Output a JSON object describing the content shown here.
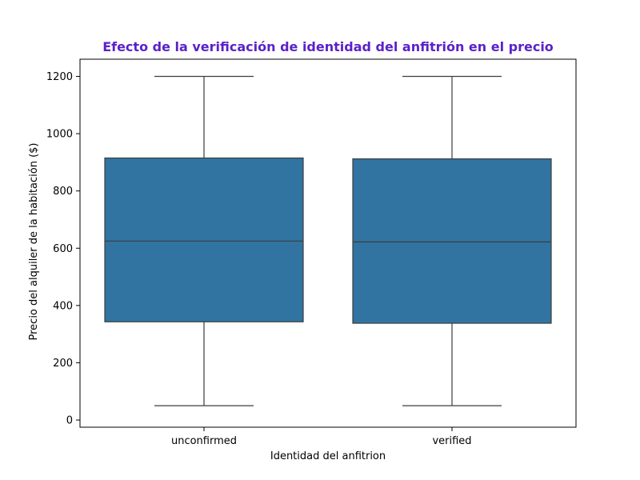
{
  "chart_data": {
    "type": "boxplot",
    "title": "Efecto de la verificación de identidad del anfitrión en el precio",
    "xlabel": "Identidad del anfitrion",
    "ylabel": "Precio del alquiler de la habitación ($)",
    "categories": [
      "unconfirmed",
      "verified"
    ],
    "boxes": [
      {
        "category": "unconfirmed",
        "min": 50,
        "q1": 343,
        "median": 625,
        "q3": 915,
        "max": 1200
      },
      {
        "category": "verified",
        "min": 50,
        "q1": 338,
        "median": 622,
        "q3": 912,
        "max": 1200
      }
    ],
    "ylim": [
      -25,
      1260
    ],
    "yticks": [
      0,
      200,
      400,
      600,
      800,
      1000,
      1200
    ],
    "grid": false,
    "legend": "none",
    "colors": {
      "box_fill": "#3274a1",
      "box_line": "#3d3d3d",
      "title": "#5b21c9"
    }
  }
}
